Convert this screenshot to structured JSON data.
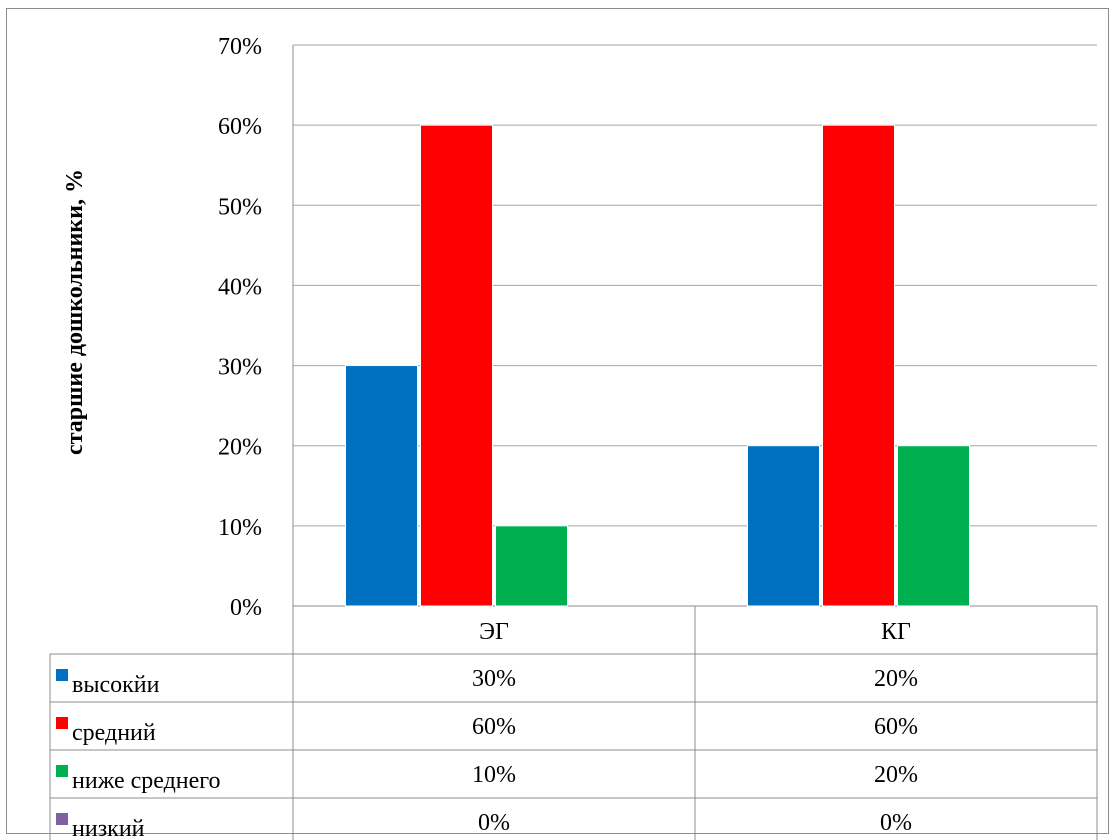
{
  "chart_data": {
    "type": "bar",
    "categories": [
      "ЭГ",
      "КГ"
    ],
    "series": [
      {
        "name": "высокйи",
        "values": [
          30,
          20
        ],
        "labels": [
          "30%",
          "20%"
        ],
        "color": "#0070c0"
      },
      {
        "name": "средний",
        "values": [
          60,
          60
        ],
        "labels": [
          "60%",
          "60%"
        ],
        "color": "#ff0000"
      },
      {
        "name": "ниже среднего",
        "values": [
          10,
          20
        ],
        "labels": [
          "10%",
          "20%"
        ],
        "color": "#00b050"
      },
      {
        "name": "низкий",
        "values": [
          0,
          0
        ],
        "labels": [
          "0%",
          "0%"
        ],
        "color": "#7f60a0"
      }
    ],
    "title": "",
    "xlabel": "",
    "ylabel": "старшие дошкольники, %",
    "ylim": [
      0,
      70
    ],
    "yticks": [
      "0%",
      "10%",
      "20%",
      "30%",
      "40%",
      "50%",
      "60%",
      "70%"
    ],
    "grid": true,
    "legend": "data table below chart"
  }
}
